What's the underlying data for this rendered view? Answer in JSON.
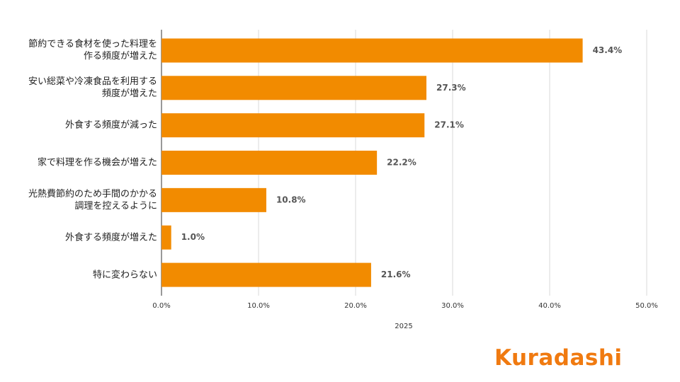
{
  "chart_data": {
    "type": "bar",
    "orientation": "horizontal",
    "categories": [
      "節約できる食材を使った料理を作る頻度が増えた",
      "安い総菜や冷凍食品を利用する頻度が増えた",
      "外食する頻度が減った",
      "家で料理を作る機会が増えた",
      "光熱費節約のため手間のかかる調理を控えるように",
      "外食する頻度が増えた",
      "特に変わらない"
    ],
    "values": [
      43.4,
      27.3,
      27.1,
      22.2,
      10.8,
      1.0,
      21.6
    ],
    "value_labels": [
      "43.4%",
      "27.3%",
      "27.1%",
      "22.2%",
      "10.8%",
      "1.0%",
      "21.6%"
    ],
    "color": "#f28b00",
    "xlabel": "2025",
    "xlim": [
      0,
      50
    ],
    "xticks": [
      {
        "value": 0,
        "label": "0.0%"
      },
      {
        "value": 10,
        "label": "10.0%"
      },
      {
        "value": 20,
        "label": "20.0%"
      },
      {
        "value": 30,
        "label": "30.0%"
      },
      {
        "value": 40,
        "label": "40.0%"
      },
      {
        "value": 50,
        "label": "50.0%"
      }
    ],
    "grid": true
  },
  "logo": "Kuradashi"
}
